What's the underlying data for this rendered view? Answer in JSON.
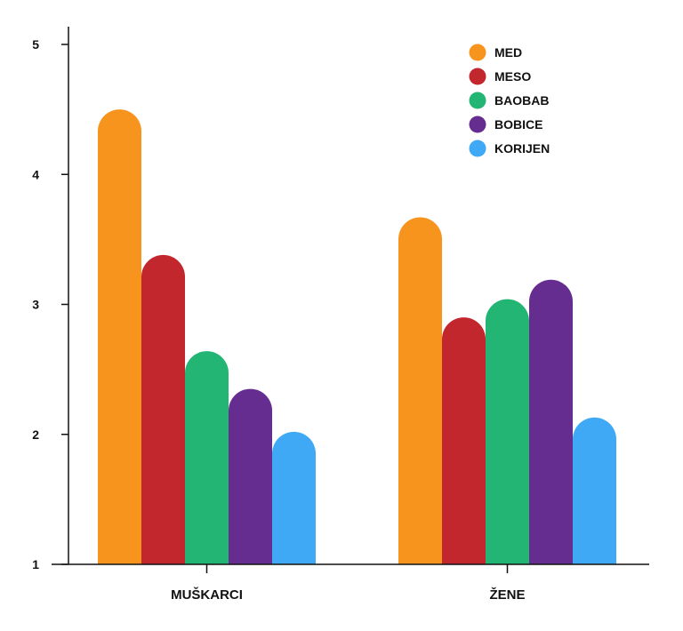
{
  "chart_data": {
    "type": "bar",
    "title": "",
    "xlabel": "",
    "ylabel": "",
    "categories": [
      "MUŠKARCI",
      "ŽENE"
    ],
    "ylim": [
      1,
      5
    ],
    "yticks": [
      "1",
      "2",
      "3",
      "4",
      "5"
    ],
    "series": [
      {
        "name": "MED",
        "color": "#f7941d",
        "values": [
          4.5,
          3.67
        ]
      },
      {
        "name": "MESO",
        "color": "#c1272d",
        "values": [
          3.38,
          2.9
        ]
      },
      {
        "name": "BAOBAB",
        "color": "#22b573",
        "values": [
          2.64,
          3.04
        ]
      },
      {
        "name": "BOBICE",
        "color": "#662d91",
        "values": [
          2.35,
          3.19
        ]
      },
      {
        "name": "KORIJEN",
        "color": "#3fa9f5",
        "values": [
          2.02,
          2.13
        ]
      }
    ],
    "legend_position": "top-right",
    "grid": false,
    "bar_style": "rounded-top"
  }
}
